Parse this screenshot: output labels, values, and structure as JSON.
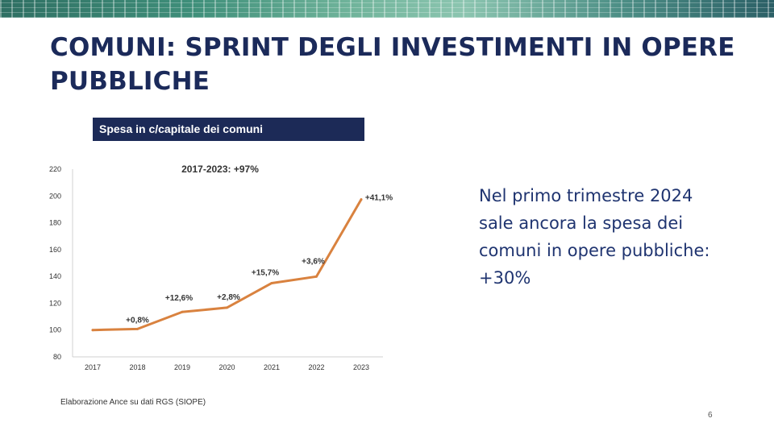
{
  "slide": {
    "title": "COMUNI: SPRINT DEGLI INVESTIMENTI IN OPERE PUBBLICHE",
    "chart_header": "Spesa in c/capitale dei comuni",
    "side_text": "Nel primo trimestre 2024 sale ancora la spesa dei comuni in opere pubbliche: +30%",
    "source": "Elaborazione Ance su dati RGS (SIOPE)",
    "page_number": "6"
  },
  "chart_data": {
    "type": "line",
    "title": "2017-2023: +97%",
    "categories": [
      "2017",
      "2018",
      "2019",
      "2020",
      "2021",
      "2022",
      "2023"
    ],
    "series": [
      {
        "values": [
          100,
          100.8,
          113.5,
          116.7,
          135,
          139.9,
          197.4
        ],
        "data_labels": [
          "",
          "+0,8%",
          "+12,6%",
          "+2,8%",
          "+15,7%",
          "+3,6%",
          "+41,1%"
        ],
        "color": "#d9823f"
      }
    ],
    "ylim": [
      80,
      220
    ],
    "yticks": [
      80,
      100,
      120,
      140,
      160,
      180,
      200,
      220
    ],
    "grid": false
  }
}
